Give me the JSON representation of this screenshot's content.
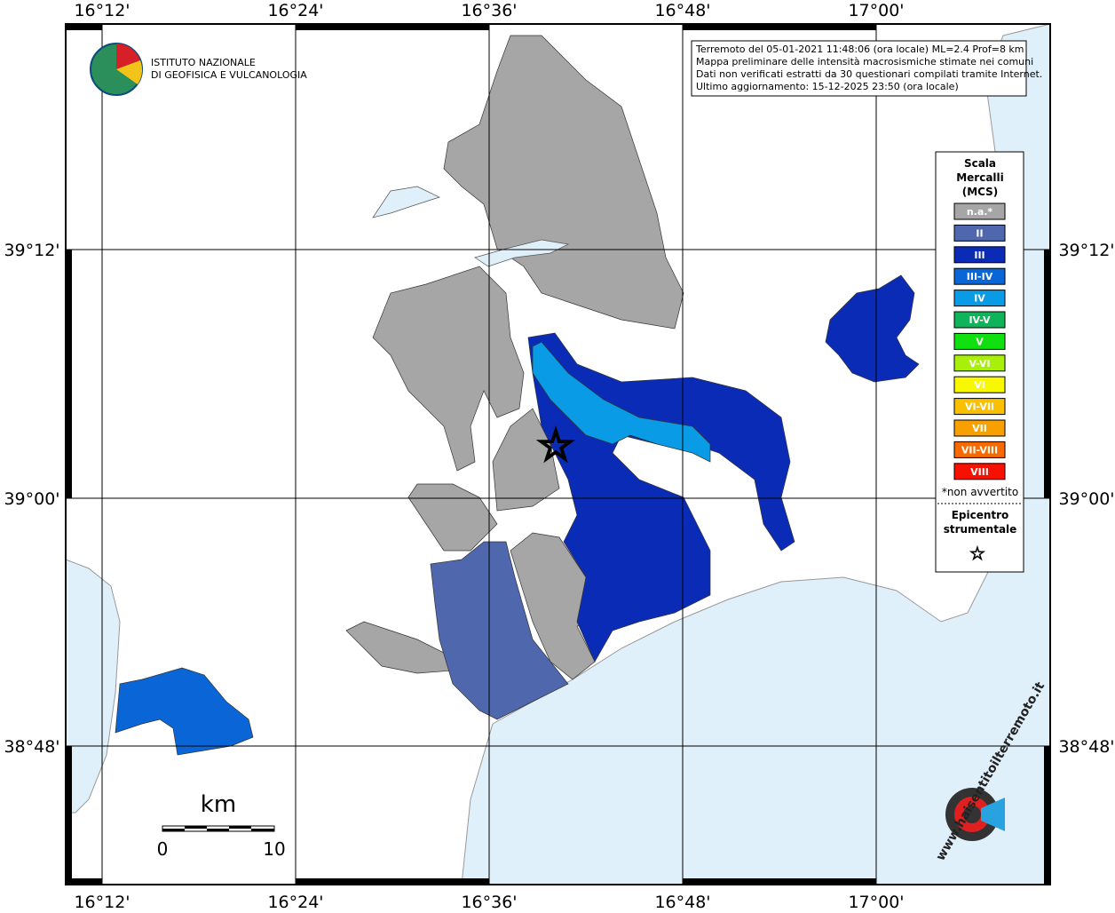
{
  "map": {
    "lon_labels": [
      "16°12'",
      "16°24'",
      "16°36'",
      "16°48'",
      "17°00'"
    ],
    "lat_labels": [
      "39°12'",
      "39°00'",
      "38°48'"
    ],
    "logo": {
      "line1": "ISTITUTO NAZIONALE",
      "line2": "DI GEOFISICA E VULCANOLOGIA"
    },
    "info": [
      "Terremoto del 05-01-2021 11:48:06 (ora locale) ML=2.4 Prof=8 km",
      "Mappa preliminare delle intensità macrosismiche stimate nei comuni",
      "Dati non verificati estratti da 30 questionari compilati tramite Internet.",
      "Ultimo aggiornamento: 15-12-2025 23:50 (ora locale)"
    ],
    "legend": {
      "title": [
        "Scala",
        "Mercalli",
        "(MCS)"
      ],
      "items": [
        {
          "label": "n.a.*",
          "color": "#a6a6a6"
        },
        {
          "label": "II",
          "color": "#4f67ad"
        },
        {
          "label": "III",
          "color": "#0a2bb5"
        },
        {
          "label": "III-IV",
          "color": "#0a66d6"
        },
        {
          "label": "IV",
          "color": "#0a9be6"
        },
        {
          "label": "IV-V",
          "color": "#0fb35a"
        },
        {
          "label": "V",
          "color": "#10e010"
        },
        {
          "label": "V-VI",
          "color": "#a8f00a"
        },
        {
          "label": "VI",
          "color": "#f8f800"
        },
        {
          "label": "VI-VII",
          "color": "#f8c000"
        },
        {
          "label": "VII",
          "color": "#f8a000"
        },
        {
          "label": "VII-VIII",
          "color": "#f86a00"
        },
        {
          "label": "VIII",
          "color": "#f81000"
        }
      ],
      "note": "*non avvertito",
      "epicenter": [
        "Epicentro",
        "strumentale"
      ]
    },
    "scale": {
      "unit": "km",
      "labels": [
        "0",
        "10"
      ]
    },
    "site": "www.haisentitoilterremoto.it"
  }
}
